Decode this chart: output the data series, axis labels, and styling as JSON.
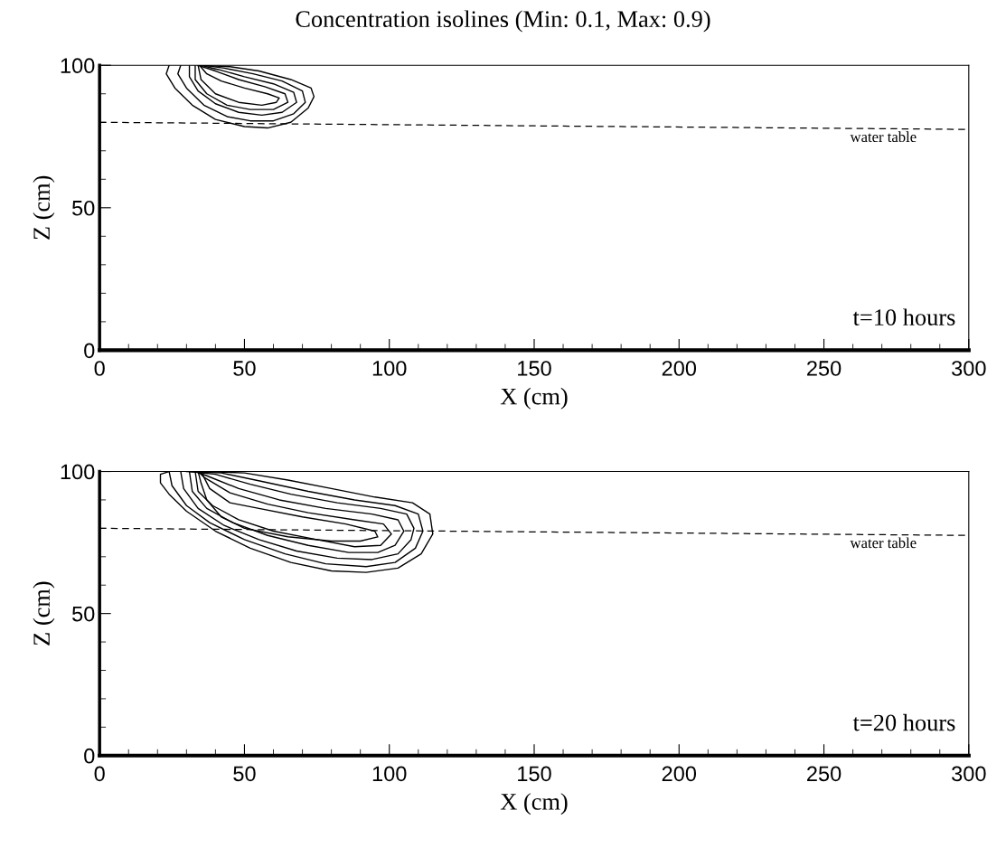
{
  "chart_data": [
    {
      "type": "line",
      "title": "Concentration isolines (Min: 0.1, Max: 0.9)",
      "xlabel": "X (cm)",
      "ylabel": "Z (cm)",
      "xlim": [
        0,
        300
      ],
      "ylim": [
        0,
        100
      ],
      "xticks": [
        0,
        {
          "value": 10,
          "label": null
        },
        {
          "value": 20,
          "label": null
        },
        {
          "value": 30,
          "label": null
        },
        {
          "value": 40,
          "label": null
        },
        50,
        {
          "value": 60,
          "label": null
        },
        {
          "value": 70,
          "label": null
        },
        {
          "value": 80,
          "label": null
        },
        {
          "value": 90,
          "label": null
        },
        100,
        {
          "value": 110,
          "label": null
        },
        {
          "value": 120,
          "label": null
        },
        {
          "value": 130,
          "label": null
        },
        {
          "value": 140,
          "label": null
        },
        150,
        {
          "value": 160,
          "label": null
        },
        {
          "value": 170,
          "label": null
        },
        {
          "value": 180,
          "label": null
        },
        {
          "value": 190,
          "label": null
        },
        200,
        {
          "value": 210,
          "label": null
        },
        {
          "value": 220,
          "label": null
        },
        {
          "value": 230,
          "label": null
        },
        {
          "value": 240,
          "label": null
        },
        250,
        {
          "value": 260,
          "label": null
        },
        {
          "value": 270,
          "label": null
        },
        {
          "value": 280,
          "label": null
        },
        {
          "value": 290,
          "label": null
        },
        300
      ],
      "yticks": [
        0,
        {
          "value": 10,
          "label": null
        },
        {
          "value": 20,
          "label": null
        },
        {
          "value": 30,
          "label": null
        },
        {
          "value": 40,
          "label": null
        },
        50,
        {
          "value": 60,
          "label": null
        },
        {
          "value": 70,
          "label": null
        },
        {
          "value": 80,
          "label": null
        },
        {
          "value": 90,
          "label": null
        },
        100
      ],
      "grid": false,
      "legend": false,
      "annotations": [
        "t=10 hours",
        "water table"
      ],
      "series": [
        {
          "color": "#000000",
          "line_style": "dashed",
          "x": [
            0,
            300
          ],
          "values": [
            80,
            77.5
          ]
        },
        {
          "color": "#000000",
          "x": [
            24,
            23,
            26,
            32,
            40,
            50,
            58,
            66,
            72,
            74,
            73,
            66,
            55,
            45,
            35
          ],
          "values": [
            100,
            97,
            92,
            86,
            81,
            78.5,
            78,
            80,
            85,
            89,
            92,
            95,
            98,
            99.5,
            100
          ]
        },
        {
          "color": "#000000",
          "x": [
            28,
            27,
            30,
            36,
            44,
            52,
            60,
            67,
            71,
            70,
            63,
            53,
            43,
            36
          ],
          "values": [
            100,
            97,
            92,
            86,
            82,
            80.5,
            80.5,
            83,
            87,
            91,
            94.5,
            97,
            99,
            100
          ]
        },
        {
          "color": "#000000",
          "x": [
            31,
            31,
            34,
            40,
            48,
            56,
            63,
            68,
            67,
            60,
            50,
            41,
            35
          ],
          "values": [
            100,
            96,
            91,
            86.5,
            83.5,
            82.5,
            83.5,
            87,
            90.5,
            93.5,
            96,
            98.5,
            100
          ]
        },
        {
          "color": "#000000",
          "x": [
            33,
            33,
            37,
            44,
            52,
            60,
            65,
            64,
            57,
            48,
            40,
            34
          ],
          "values": [
            100,
            95,
            90,
            86,
            84.5,
            84.5,
            87,
            90,
            92.5,
            95,
            98,
            100
          ]
        },
        {
          "color": "#000000",
          "x": [
            34,
            35,
            40,
            48,
            56,
            61,
            62,
            58,
            50,
            42,
            37,
            34.5
          ],
          "values": [
            100,
            95,
            90,
            87,
            86,
            87,
            88.5,
            90,
            92,
            94.5,
            97,
            100
          ]
        }
      ]
    },
    {
      "type": "line",
      "xlabel": "X (cm)",
      "ylabel": "Z (cm)",
      "xlim": [
        0,
        300
      ],
      "ylim": [
        0,
        100
      ],
      "xticks": [
        0,
        {
          "value": 10,
          "label": null
        },
        {
          "value": 20,
          "label": null
        },
        {
          "value": 30,
          "label": null
        },
        {
          "value": 40,
          "label": null
        },
        50,
        {
          "value": 60,
          "label": null
        },
        {
          "value": 70,
          "label": null
        },
        {
          "value": 80,
          "label": null
        },
        {
          "value": 90,
          "label": null
        },
        100,
        {
          "value": 110,
          "label": null
        },
        {
          "value": 120,
          "label": null
        },
        {
          "value": 130,
          "label": null
        },
        {
          "value": 140,
          "label": null
        },
        150,
        {
          "value": 160,
          "label": null
        },
        {
          "value": 170,
          "label": null
        },
        {
          "value": 180,
          "label": null
        },
        {
          "value": 190,
          "label": null
        },
        200,
        {
          "value": 210,
          "label": null
        },
        {
          "value": 220,
          "label": null
        },
        {
          "value": 230,
          "label": null
        },
        {
          "value": 240,
          "label": null
        },
        250,
        {
          "value": 260,
          "label": null
        },
        {
          "value": 270,
          "label": null
        },
        {
          "value": 280,
          "label": null
        },
        {
          "value": 290,
          "label": null
        },
        300
      ],
      "yticks": [
        0,
        {
          "value": 10,
          "label": null
        },
        {
          "value": 20,
          "label": null
        },
        {
          "value": 30,
          "label": null
        },
        {
          "value": 40,
          "label": null
        },
        50,
        {
          "value": 60,
          "label": null
        },
        {
          "value": 70,
          "label": null
        },
        {
          "value": 80,
          "label": null
        },
        {
          "value": 90,
          "label": null
        },
        100
      ],
      "grid": false,
      "legend": false,
      "annotations": [
        "t=20 hours",
        "water table"
      ],
      "series": [
        {
          "color": "#000000",
          "line_style": "dashed",
          "x": [
            0,
            300
          ],
          "values": [
            80,
            77.5
          ]
        },
        {
          "color": "#000000",
          "x": [
            24,
            21,
            21,
            24,
            30,
            40,
            52,
            66,
            80,
            92,
            103,
            111,
            115,
            114,
            108,
            95,
            80,
            65,
            50,
            35
          ],
          "values": [
            100,
            99,
            96,
            92,
            86,
            79,
            73,
            68,
            65,
            64.5,
            66,
            71,
            78,
            85,
            89,
            91,
            94,
            97,
            99.5,
            100
          ]
        },
        {
          "color": "#000000",
          "x": [
            24,
            25,
            30,
            38,
            50,
            64,
            78,
            92,
            102,
            109,
            111.6,
            110,
            102,
            88,
            72,
            56,
            42,
            30
          ],
          "values": [
            100,
            95,
            88,
            82,
            76,
            71,
            67.5,
            66.5,
            68,
            73,
            79,
            85,
            88,
            90,
            93,
            96.5,
            99.5,
            100
          ]
        },
        {
          "color": "#000000",
          "x": [
            28,
            29,
            34,
            43,
            55,
            68,
            82,
            94,
            103,
            107.5,
            108.5,
            106,
            97,
            82,
            66,
            52,
            40,
            31
          ],
          "values": [
            100,
            94,
            87,
            81,
            76,
            72,
            69.5,
            69,
            71,
            76,
            80,
            85,
            87,
            89,
            92,
            95.5,
            99,
            100
          ]
        },
        {
          "color": "#000000",
          "x": [
            31,
            32,
            37,
            46,
            58,
            72,
            86,
            96,
            102,
            105,
            103,
            94,
            78,
            62,
            48,
            37,
            33
          ],
          "values": [
            100,
            93,
            87,
            82,
            77.5,
            74,
            71.5,
            71.5,
            74,
            79,
            83,
            85,
            87,
            90,
            94,
            98.5,
            100
          ]
        },
        {
          "color": "#000000",
          "x": [
            33,
            34,
            39,
            48,
            60,
            75,
            88,
            97,
            100.7,
            98,
            88,
            72,
            58,
            45,
            36,
            34
          ],
          "values": [
            100,
            93,
            88,
            83,
            79,
            76,
            73.5,
            74,
            78,
            81.5,
            83,
            85.5,
            88.5,
            92.5,
            98,
            100
          ]
        },
        {
          "color": "#000000",
          "x": [
            34,
            35,
            37,
            42,
            50,
            65,
            80,
            90,
            96,
            95,
            85,
            70,
            55,
            45,
            38,
            35
          ],
          "values": [
            100,
            96,
            90,
            84,
            80,
            77,
            75.5,
            75.5,
            77,
            79,
            81.5,
            84,
            87,
            89,
            94,
            100
          ]
        }
      ]
    }
  ]
}
